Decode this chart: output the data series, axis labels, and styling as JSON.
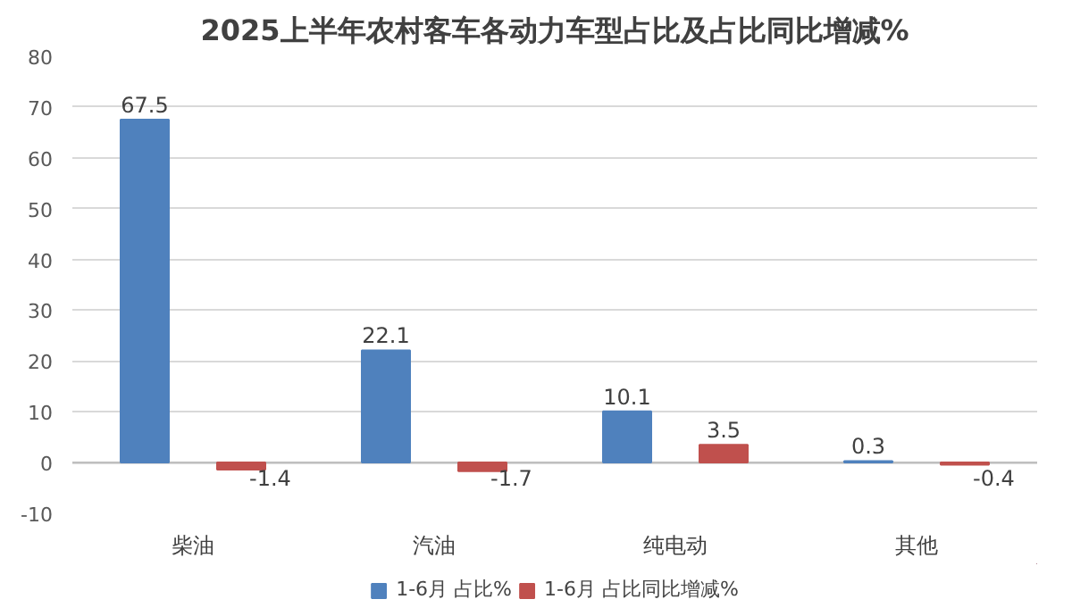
{
  "chart_data": {
    "type": "bar",
    "title": "2025上半年农村客车各动力车型占比及占比同比增减%",
    "categories": [
      "柴油",
      "汽油",
      "纯电动",
      "其他"
    ],
    "series": [
      {
        "name": "1-6月 占比%",
        "color": "#4f81bd",
        "values": [
          67.5,
          22.1,
          10.1,
          0.3
        ]
      },
      {
        "name": "1-6月 占比同比增减%",
        "color": "#c0504d",
        "values": [
          -1.4,
          -1.7,
          3.5,
          -0.4
        ]
      }
    ],
    "ylim": [
      -10,
      80
    ],
    "yticks": [
      -10,
      0,
      10,
      20,
      30,
      40,
      50,
      60,
      70,
      80
    ],
    "grid": "y",
    "legend": "bottom",
    "data_labels": true
  }
}
